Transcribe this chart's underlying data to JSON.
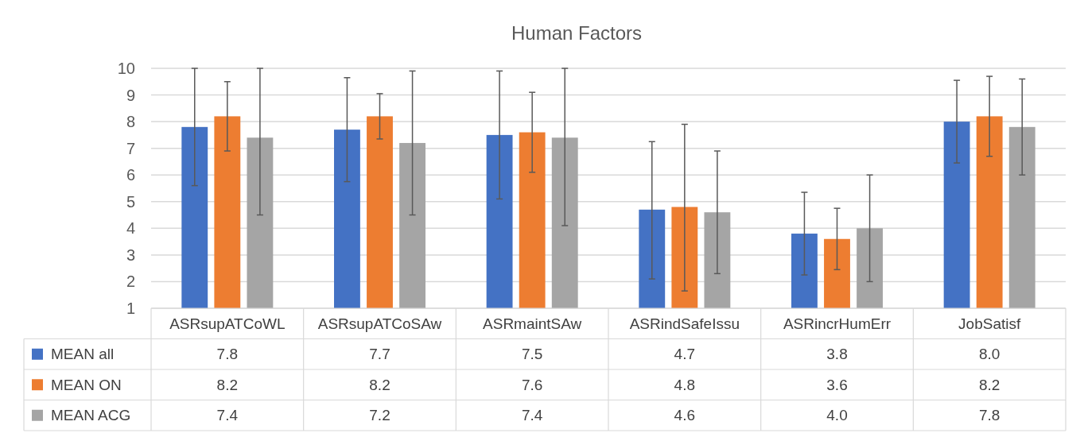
{
  "chart_data": {
    "type": "bar",
    "title": "Human Factors",
    "categories": [
      "ASRsupATCoWL",
      "ASRsupATCoSAw",
      "ASRmaintSAw",
      "ASRindSafeIssu",
      "ASRincrHumErr",
      "JobSatisf"
    ],
    "series": [
      {
        "name": "MEAN all",
        "color": "#4472c4",
        "values": [
          7.8,
          7.7,
          7.5,
          4.7,
          3.8,
          8.0
        ],
        "value_labels": [
          "7.8",
          "7.7",
          "7.5",
          "4.7",
          "3.8",
          "8.0"
        ],
        "errors": [
          [
            5.6,
            10.0
          ],
          [
            5.75,
            9.65
          ],
          [
            5.1,
            9.9
          ],
          [
            2.1,
            7.25
          ],
          [
            2.25,
            5.35
          ],
          [
            6.45,
            9.55
          ]
        ]
      },
      {
        "name": "MEAN ON",
        "color": "#ed7d31",
        "values": [
          8.2,
          8.2,
          7.6,
          4.8,
          3.6,
          8.2
        ],
        "value_labels": [
          "8.2",
          "8.2",
          "7.6",
          "4.8",
          "3.6",
          "8.2"
        ],
        "errors": [
          [
            6.9,
            9.5
          ],
          [
            7.35,
            9.05
          ],
          [
            6.1,
            9.1
          ],
          [
            1.65,
            7.9
          ],
          [
            2.45,
            4.75
          ],
          [
            6.7,
            9.7
          ]
        ]
      },
      {
        "name": "MEAN ACG",
        "color": "#a5a5a5",
        "values": [
          7.4,
          7.2,
          7.4,
          4.6,
          4.0,
          7.8
        ],
        "value_labels": [
          "7.4",
          "7.2",
          "7.4",
          "4.6",
          "4.0",
          "7.8"
        ],
        "errors": [
          [
            4.5,
            10.0
          ],
          [
            4.5,
            9.9
          ],
          [
            4.1,
            10.0
          ],
          [
            2.3,
            6.9
          ],
          [
            2.0,
            6.0
          ],
          [
            6.0,
            9.6
          ]
        ]
      }
    ],
    "ylim": [
      1,
      10
    ],
    "yticks": [
      1,
      2,
      3,
      4,
      5,
      6,
      7,
      8,
      9,
      10
    ],
    "grid": "y",
    "legend": "bottom"
  }
}
